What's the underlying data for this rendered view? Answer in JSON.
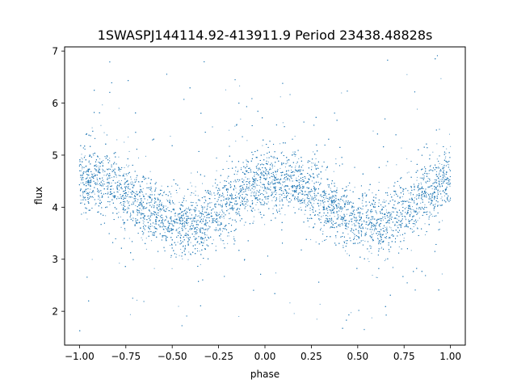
{
  "chart_data": {
    "type": "scatter",
    "title": "1SWASPJ144114.92-413911.9 Period 23438.48828s",
    "xlabel": "phase",
    "ylabel": "flux",
    "xlim": [
      -1.08,
      1.08
    ],
    "ylim": [
      1.35,
      7.08
    ],
    "x_ticks": [
      -1.0,
      -0.75,
      -0.5,
      -0.25,
      0.0,
      0.25,
      0.5,
      0.75,
      1.0
    ],
    "x_tick_labels": [
      "−1.00",
      "−0.75",
      "−0.50",
      "−0.25",
      "0.00",
      "0.25",
      "0.50",
      "0.75",
      "1.00"
    ],
    "y_ticks": [
      2,
      3,
      4,
      5,
      6,
      7
    ],
    "y_tick_labels": [
      "2",
      "3",
      "4",
      "5",
      "6",
      "7"
    ],
    "grid": false,
    "legend": "none",
    "series": [
      {
        "color": "#1f77b4",
        "phase_curve": {
          "phase": [
            -1.0,
            -0.875,
            -0.75,
            -0.625,
            -0.5,
            -0.375,
            -0.25,
            -0.125,
            0.0,
            0.125,
            0.25,
            0.375,
            0.5,
            0.625,
            0.75,
            0.875,
            1.0
          ],
          "flux": [
            4.55,
            4.5,
            4.3,
            3.98,
            3.7,
            3.65,
            3.92,
            4.3,
            4.5,
            4.5,
            4.32,
            4.0,
            3.72,
            3.65,
            3.92,
            4.3,
            4.55
          ]
        },
        "core_spread": 0.3,
        "points_per_unit_phase": 6000
      }
    ]
  }
}
